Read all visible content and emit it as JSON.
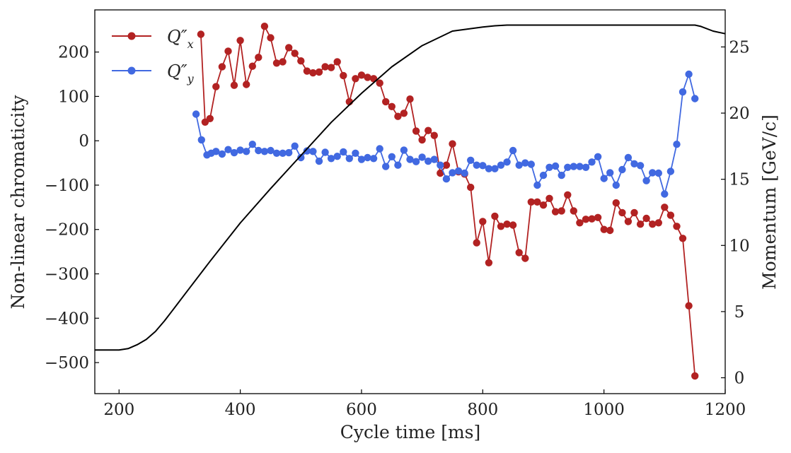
{
  "chart_data": {
    "type": "line",
    "xlabel": "Cycle time [ms]",
    "ylabel_left": "Non-linear chromaticity",
    "ylabel_right": "Momentum [GeV/c]",
    "xlim": [
      160,
      1200
    ],
    "ylim_left": [
      -570,
      295
    ],
    "ylim_right": [
      -1.2,
      27.8
    ],
    "xticks": [
      200,
      400,
      600,
      800,
      1000,
      1200
    ],
    "yticks_left": [
      200,
      100,
      0,
      -100,
      -200,
      -300,
      -400,
      -500
    ],
    "yticks_right": [
      0,
      5,
      10,
      15,
      20,
      25
    ],
    "xtick_labels": [
      "200",
      "400",
      "600",
      "800",
      "1000",
      "1200"
    ],
    "ytick_labels_left": [
      "200",
      "100",
      "0",
      "−100",
      "−200",
      "−300",
      "−400",
      "−500"
    ],
    "ytick_labels_right": [
      "0",
      "5",
      "10",
      "15",
      "20",
      "25"
    ],
    "grid": false,
    "legend_position": "top-left",
    "series": [
      {
        "name": "Q″x",
        "name_main": "Q″",
        "name_sub": "x",
        "axis": "left",
        "color": "#b22222",
        "marker": "circle",
        "x": [
          335,
          342,
          350,
          360,
          370,
          380,
          390,
          400,
          410,
          420,
          430,
          440,
          450,
          460,
          470,
          480,
          490,
          500,
          510,
          520,
          530,
          540,
          550,
          560,
          570,
          580,
          590,
          600,
          610,
          620,
          630,
          640,
          650,
          660,
          670,
          680,
          690,
          700,
          710,
          720,
          730,
          740,
          750,
          760,
          770,
          780,
          790,
          800,
          810,
          820,
          830,
          840,
          850,
          860,
          870,
          880,
          890,
          900,
          910,
          920,
          930,
          940,
          950,
          960,
          970,
          980,
          990,
          1000,
          1010,
          1020,
          1030,
          1040,
          1050,
          1060,
          1070,
          1080,
          1090,
          1100,
          1110,
          1120,
          1130,
          1140,
          1150
        ],
        "y": [
          240,
          42,
          50,
          122,
          167,
          202,
          125,
          226,
          127,
          168,
          188,
          258,
          232,
          175,
          178,
          210,
          197,
          180,
          157,
          153,
          155,
          167,
          165,
          178,
          147,
          88,
          140,
          148,
          143,
          140,
          130,
          88,
          77,
          55,
          62,
          94,
          22,
          2,
          23,
          12,
          -73,
          -55,
          -7,
          -70,
          -75,
          -105,
          -230,
          -182,
          -275,
          -170,
          -193,
          -188,
          -190,
          -252,
          -265,
          -138,
          -138,
          -145,
          -130,
          -160,
          -158,
          -122,
          -158,
          -185,
          -177,
          -176,
          -173,
          -200,
          -202,
          -140,
          -162,
          -182,
          -162,
          -188,
          -175,
          -188,
          -185,
          -150,
          -168,
          -193,
          -220,
          -372,
          -530
        ]
      },
      {
        "name": "Q″y",
        "name_main": "Q″",
        "name_sub": "y",
        "axis": "left",
        "color": "#4169e1",
        "marker": "circle",
        "x": [
          327,
          336,
          345,
          352,
          360,
          370,
          380,
          390,
          400,
          410,
          420,
          430,
          440,
          450,
          460,
          470,
          480,
          490,
          500,
          510,
          520,
          530,
          540,
          550,
          560,
          570,
          580,
          590,
          600,
          610,
          620,
          630,
          640,
          650,
          660,
          670,
          680,
          690,
          700,
          710,
          720,
          730,
          740,
          750,
          760,
          770,
          780,
          790,
          800,
          810,
          820,
          830,
          840,
          850,
          860,
          870,
          880,
          890,
          900,
          910,
          920,
          930,
          940,
          950,
          960,
          970,
          980,
          990,
          1000,
          1010,
          1020,
          1030,
          1040,
          1050,
          1060,
          1070,
          1080,
          1090,
          1100,
          1110,
          1120,
          1130,
          1140,
          1150
        ],
        "y": [
          60,
          2,
          -32,
          -28,
          -24,
          -30,
          -20,
          -27,
          -21,
          -24,
          -8,
          -22,
          -24,
          -22,
          -28,
          -28,
          -27,
          -12,
          -38,
          -23,
          -24,
          -46,
          -26,
          -40,
          -35,
          -25,
          -40,
          -28,
          -42,
          -38,
          -40,
          -18,
          -58,
          -36,
          -55,
          -21,
          -42,
          -47,
          -37,
          -46,
          -42,
          -55,
          -86,
          -72,
          -68,
          -73,
          -44,
          -55,
          -56,
          -63,
          -63,
          -55,
          -48,
          -22,
          -55,
          -50,
          -53,
          -100,
          -78,
          -60,
          -57,
          -78,
          -60,
          -58,
          -58,
          -60,
          -48,
          -36,
          -85,
          -72,
          -100,
          -65,
          -38,
          -52,
          -56,
          -90,
          -72,
          -73,
          -120,
          -69,
          -8,
          110,
          150,
          95
        ]
      },
      {
        "name": "Momentum",
        "axis": "right",
        "color": "#000000",
        "marker": "none",
        "x": [
          160,
          200,
          215,
          230,
          245,
          260,
          275,
          290,
          310,
          350,
          400,
          450,
          500,
          550,
          600,
          650,
          700,
          750,
          800,
          820,
          840,
          855,
          865,
          870,
          900,
          1000,
          1100,
          1150,
          1160,
          1180,
          1200
        ],
        "y": [
          2.1,
          2.1,
          2.2,
          2.5,
          2.9,
          3.5,
          4.3,
          5.2,
          6.4,
          8.8,
          11.7,
          14.3,
          16.8,
          19.3,
          21.5,
          23.5,
          25.1,
          26.2,
          26.5,
          26.6,
          26.65,
          26.65,
          26.65,
          26.65,
          26.65,
          26.65,
          26.65,
          26.65,
          26.55,
          26.2,
          26.0
        ]
      }
    ]
  }
}
